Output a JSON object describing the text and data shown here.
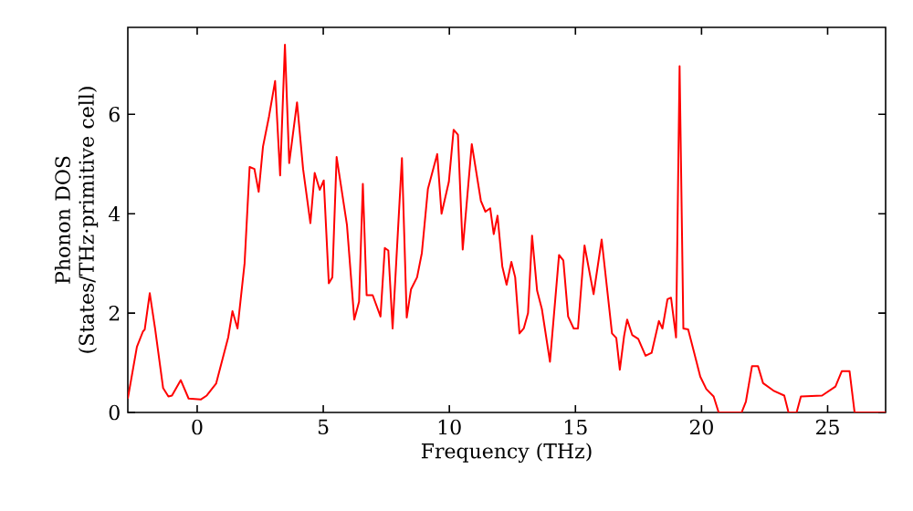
{
  "chart_data": {
    "type": "line",
    "xlabel": "Frequency (THz)",
    "ylabel": "Phonon DOS (States/THz·primitive cell)",
    "xlim": [
      -2.75,
      27.3
    ],
    "ylim": [
      0,
      7.75
    ],
    "xticks": [
      0,
      5,
      10,
      15,
      20,
      25
    ],
    "yticks": [
      0,
      2,
      4,
      6
    ],
    "marker": "none",
    "line_style": "solid",
    "series": [
      {
        "color": "#ff0000",
        "x": [
          -2.75,
          -2.39,
          -2.15,
          -2.08,
          -1.88,
          -1.67,
          -1.35,
          -1.14,
          -1.0,
          -0.65,
          -0.34,
          0.14,
          0.38,
          0.75,
          1.23,
          1.4,
          1.6,
          1.88,
          2.08,
          2.27,
          2.44,
          2.61,
          2.85,
          3.09,
          3.29,
          3.48,
          3.65,
          3.96,
          4.2,
          4.49,
          4.66,
          4.86,
          5.02,
          5.22,
          5.36,
          5.53,
          5.94,
          6.23,
          6.42,
          6.57,
          6.72,
          6.96,
          7.27,
          7.44,
          7.58,
          7.75,
          8.12,
          8.31,
          8.48,
          8.72,
          8.91,
          9.15,
          9.52,
          9.69,
          9.98,
          10.17,
          10.34,
          10.53,
          10.89,
          11.25,
          11.43,
          11.62,
          11.76,
          11.91,
          12.1,
          12.27,
          12.46,
          12.61,
          12.78,
          12.95,
          13.12,
          13.28,
          13.48,
          13.67,
          13.99,
          14.35,
          14.52,
          14.71,
          14.93,
          15.1,
          15.36,
          15.72,
          16.04,
          16.45,
          16.62,
          16.76,
          16.93,
          17.05,
          17.25,
          17.49,
          17.78,
          18.02,
          18.31,
          18.45,
          18.65,
          18.79,
          18.99,
          19.13,
          19.28,
          19.47,
          19.71,
          19.95,
          20.19,
          20.48,
          20.68,
          21.59,
          21.76,
          22.0,
          22.24,
          22.44,
          22.85,
          23.28,
          23.45,
          23.77,
          23.94,
          24.78,
          25.31,
          25.56,
          25.87,
          26.07,
          27.3
        ],
        "values": [
          0.28,
          1.32,
          1.63,
          1.67,
          2.4,
          1.69,
          0.49,
          0.32,
          0.34,
          0.65,
          0.28,
          0.26,
          0.34,
          0.58,
          1.51,
          2.04,
          1.69,
          3.0,
          4.94,
          4.9,
          4.44,
          5.35,
          5.96,
          6.67,
          4.77,
          7.4,
          5.02,
          6.24,
          4.9,
          3.81,
          4.82,
          4.48,
          4.67,
          2.6,
          2.72,
          5.14,
          3.77,
          1.87,
          2.23,
          4.6,
          2.36,
          2.36,
          1.93,
          3.31,
          3.26,
          1.69,
          5.12,
          1.91,
          2.48,
          2.72,
          3.21,
          4.5,
          5.2,
          4.0,
          4.64,
          5.69,
          5.59,
          3.28,
          5.4,
          4.26,
          4.04,
          4.11,
          3.59,
          3.96,
          2.94,
          2.57,
          3.03,
          2.72,
          1.59,
          1.69,
          2.0,
          3.56,
          2.45,
          2.08,
          1.02,
          3.17,
          3.06,
          1.93,
          1.69,
          1.69,
          3.36,
          2.38,
          3.48,
          1.59,
          1.5,
          0.86,
          1.54,
          1.87,
          1.56,
          1.48,
          1.14,
          1.2,
          1.84,
          1.69,
          2.28,
          2.31,
          1.51,
          6.97,
          1.69,
          1.67,
          1.2,
          0.72,
          0.47,
          0.32,
          0,
          0,
          0.22,
          0.93,
          0.93,
          0.59,
          0.44,
          0.34,
          0,
          0,
          0.32,
          0.34,
          0.52,
          0.83,
          0.83,
          0,
          0
        ]
      }
    ]
  }
}
